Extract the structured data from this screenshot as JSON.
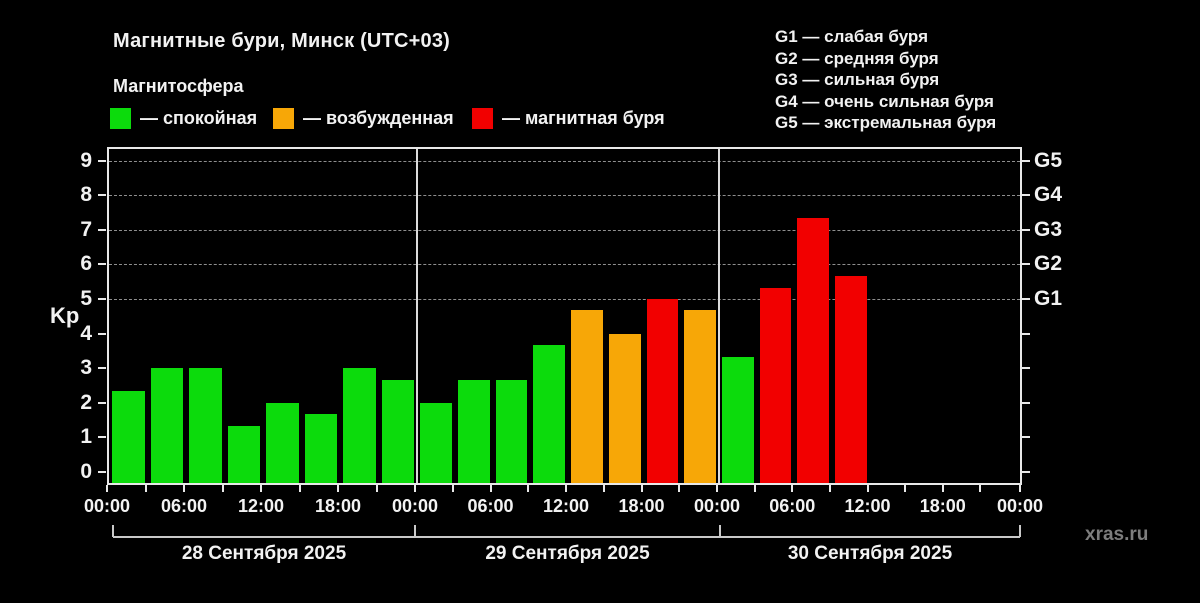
{
  "header": {
    "title": "Магнитные бури, Минск (UTC+03)",
    "subtitle": "Магнитосфера"
  },
  "legend": {
    "items": [
      {
        "key": "quiet",
        "label": "— спокойная"
      },
      {
        "key": "excited",
        "label": "— возбужденная"
      },
      {
        "key": "storm",
        "label": "— магнитная буря"
      }
    ]
  },
  "g_scale_legend": {
    "lines": [
      "G1 — слабая буря",
      "G2 — средняя буря",
      "G3 — сильная буря",
      "G4 — очень сильная буря",
      "G5 — экстремальная буря"
    ]
  },
  "colors": {
    "quiet": "#0cdb0c",
    "excited": "#f7a707",
    "storm": "#f20000",
    "background": "#000000",
    "axis": "#e8e8e8",
    "gridline": "#8f8f8f",
    "watermark_text": "#7d7d7d"
  },
  "watermark": "xras.ru",
  "chart_data": {
    "type": "bar",
    "title": "Магнитные бури, Минск (UTC+03)",
    "ylabel": "Kp",
    "ylim": [
      0,
      9
    ],
    "yticks": [
      0,
      1,
      2,
      3,
      4,
      5,
      6,
      7,
      8,
      9
    ],
    "gridline_levels": [
      5,
      6,
      7,
      8,
      9
    ],
    "grid": "dashed, only at Kp 5-9",
    "legend_position": "top-left",
    "right_axis_labels": [
      {
        "kp": 5,
        "label": "G1"
      },
      {
        "kp": 6,
        "label": "G2"
      },
      {
        "kp": 7,
        "label": "G3"
      },
      {
        "kp": 8,
        "label": "G4"
      },
      {
        "kp": 9,
        "label": "G5"
      }
    ],
    "interval_hours": 3,
    "x_time_labels": [
      "00:00",
      "06:00",
      "12:00",
      "18:00"
    ],
    "x_end_label": "00:00",
    "days": [
      {
        "date": "28 Сентября 2025",
        "values": [
          2.33,
          3,
          3,
          1.33,
          2,
          1.67,
          3,
          2.67
        ],
        "levels": [
          "quiet",
          "quiet",
          "quiet",
          "quiet",
          "quiet",
          "quiet",
          "quiet",
          "quiet"
        ]
      },
      {
        "date": "29 Сентября 2025",
        "values": [
          2,
          2.67,
          2.67,
          3.67,
          4.67,
          4,
          5,
          4.67
        ],
        "levels": [
          "quiet",
          "quiet",
          "quiet",
          "quiet",
          "excited",
          "excited",
          "storm",
          "excited"
        ]
      },
      {
        "date": "30 Сентября 2025",
        "values": [
          3.33,
          5.33,
          7.33,
          5.67,
          null,
          null,
          null,
          null
        ],
        "levels": [
          "quiet",
          "storm",
          "storm",
          "storm",
          null,
          null,
          null,
          null
        ]
      }
    ]
  }
}
